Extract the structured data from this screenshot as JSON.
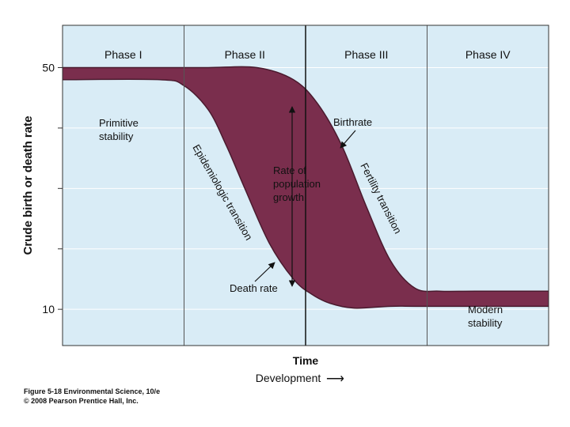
{
  "chart_data": {
    "type": "area",
    "ylabel": "Crude birth or death rate",
    "xlabel": "Time",
    "xsublabel": "Development",
    "arrow_glyph": "⟶",
    "ylim": [
      4,
      57
    ],
    "xlim": [
      0,
      4
    ],
    "y_ticks": [
      50,
      10
    ],
    "y_tick_labels": [
      "50",
      "10"
    ],
    "grid": true,
    "phases": [
      "Phase I",
      "Phase II",
      "Phase III",
      "Phase IV"
    ],
    "series": [
      {
        "name": "Birthrate",
        "color": "#7a2e4d",
        "x": [
          0,
          0.8,
          1.2,
          1.6,
          1.9,
          2.1,
          2.3,
          2.5,
          2.7,
          2.9,
          3.1,
          3.4,
          4.0
        ],
        "y": [
          50,
          50,
          50,
          50,
          48,
          44,
          37,
          27,
          18,
          13.5,
          13,
          13,
          13
        ]
      },
      {
        "name": "Death rate",
        "color": "#7a2e4d",
        "x": [
          0,
          0.8,
          1.0,
          1.2,
          1.35,
          1.5,
          1.7,
          1.9,
          2.05,
          2.2,
          2.4,
          2.7,
          3.0,
          4.0
        ],
        "y": [
          48,
          48,
          47,
          43,
          37,
          30,
          21,
          15,
          12.5,
          11,
          10.2,
          10.5,
          10.5,
          10.5
        ]
      }
    ],
    "fill_color": "#7a2e4d",
    "background_color": "#d9ecf6",
    "annotations": {
      "primitive": [
        "Primitive",
        "stability"
      ],
      "modern": [
        "Modern",
        "stability"
      ],
      "birthrate": "Birthrate",
      "death_rate": "Death rate",
      "rate_of_growth": [
        "Rate of",
        "population",
        "growth"
      ],
      "epidemiologic": "Epidemiologic transition",
      "fertility": "Fertility transition"
    }
  },
  "caption": {
    "line1": "Figure 5-18 Environmental Science, 10/e",
    "line2": "© 2008 Pearson Prentice Hall, Inc."
  }
}
